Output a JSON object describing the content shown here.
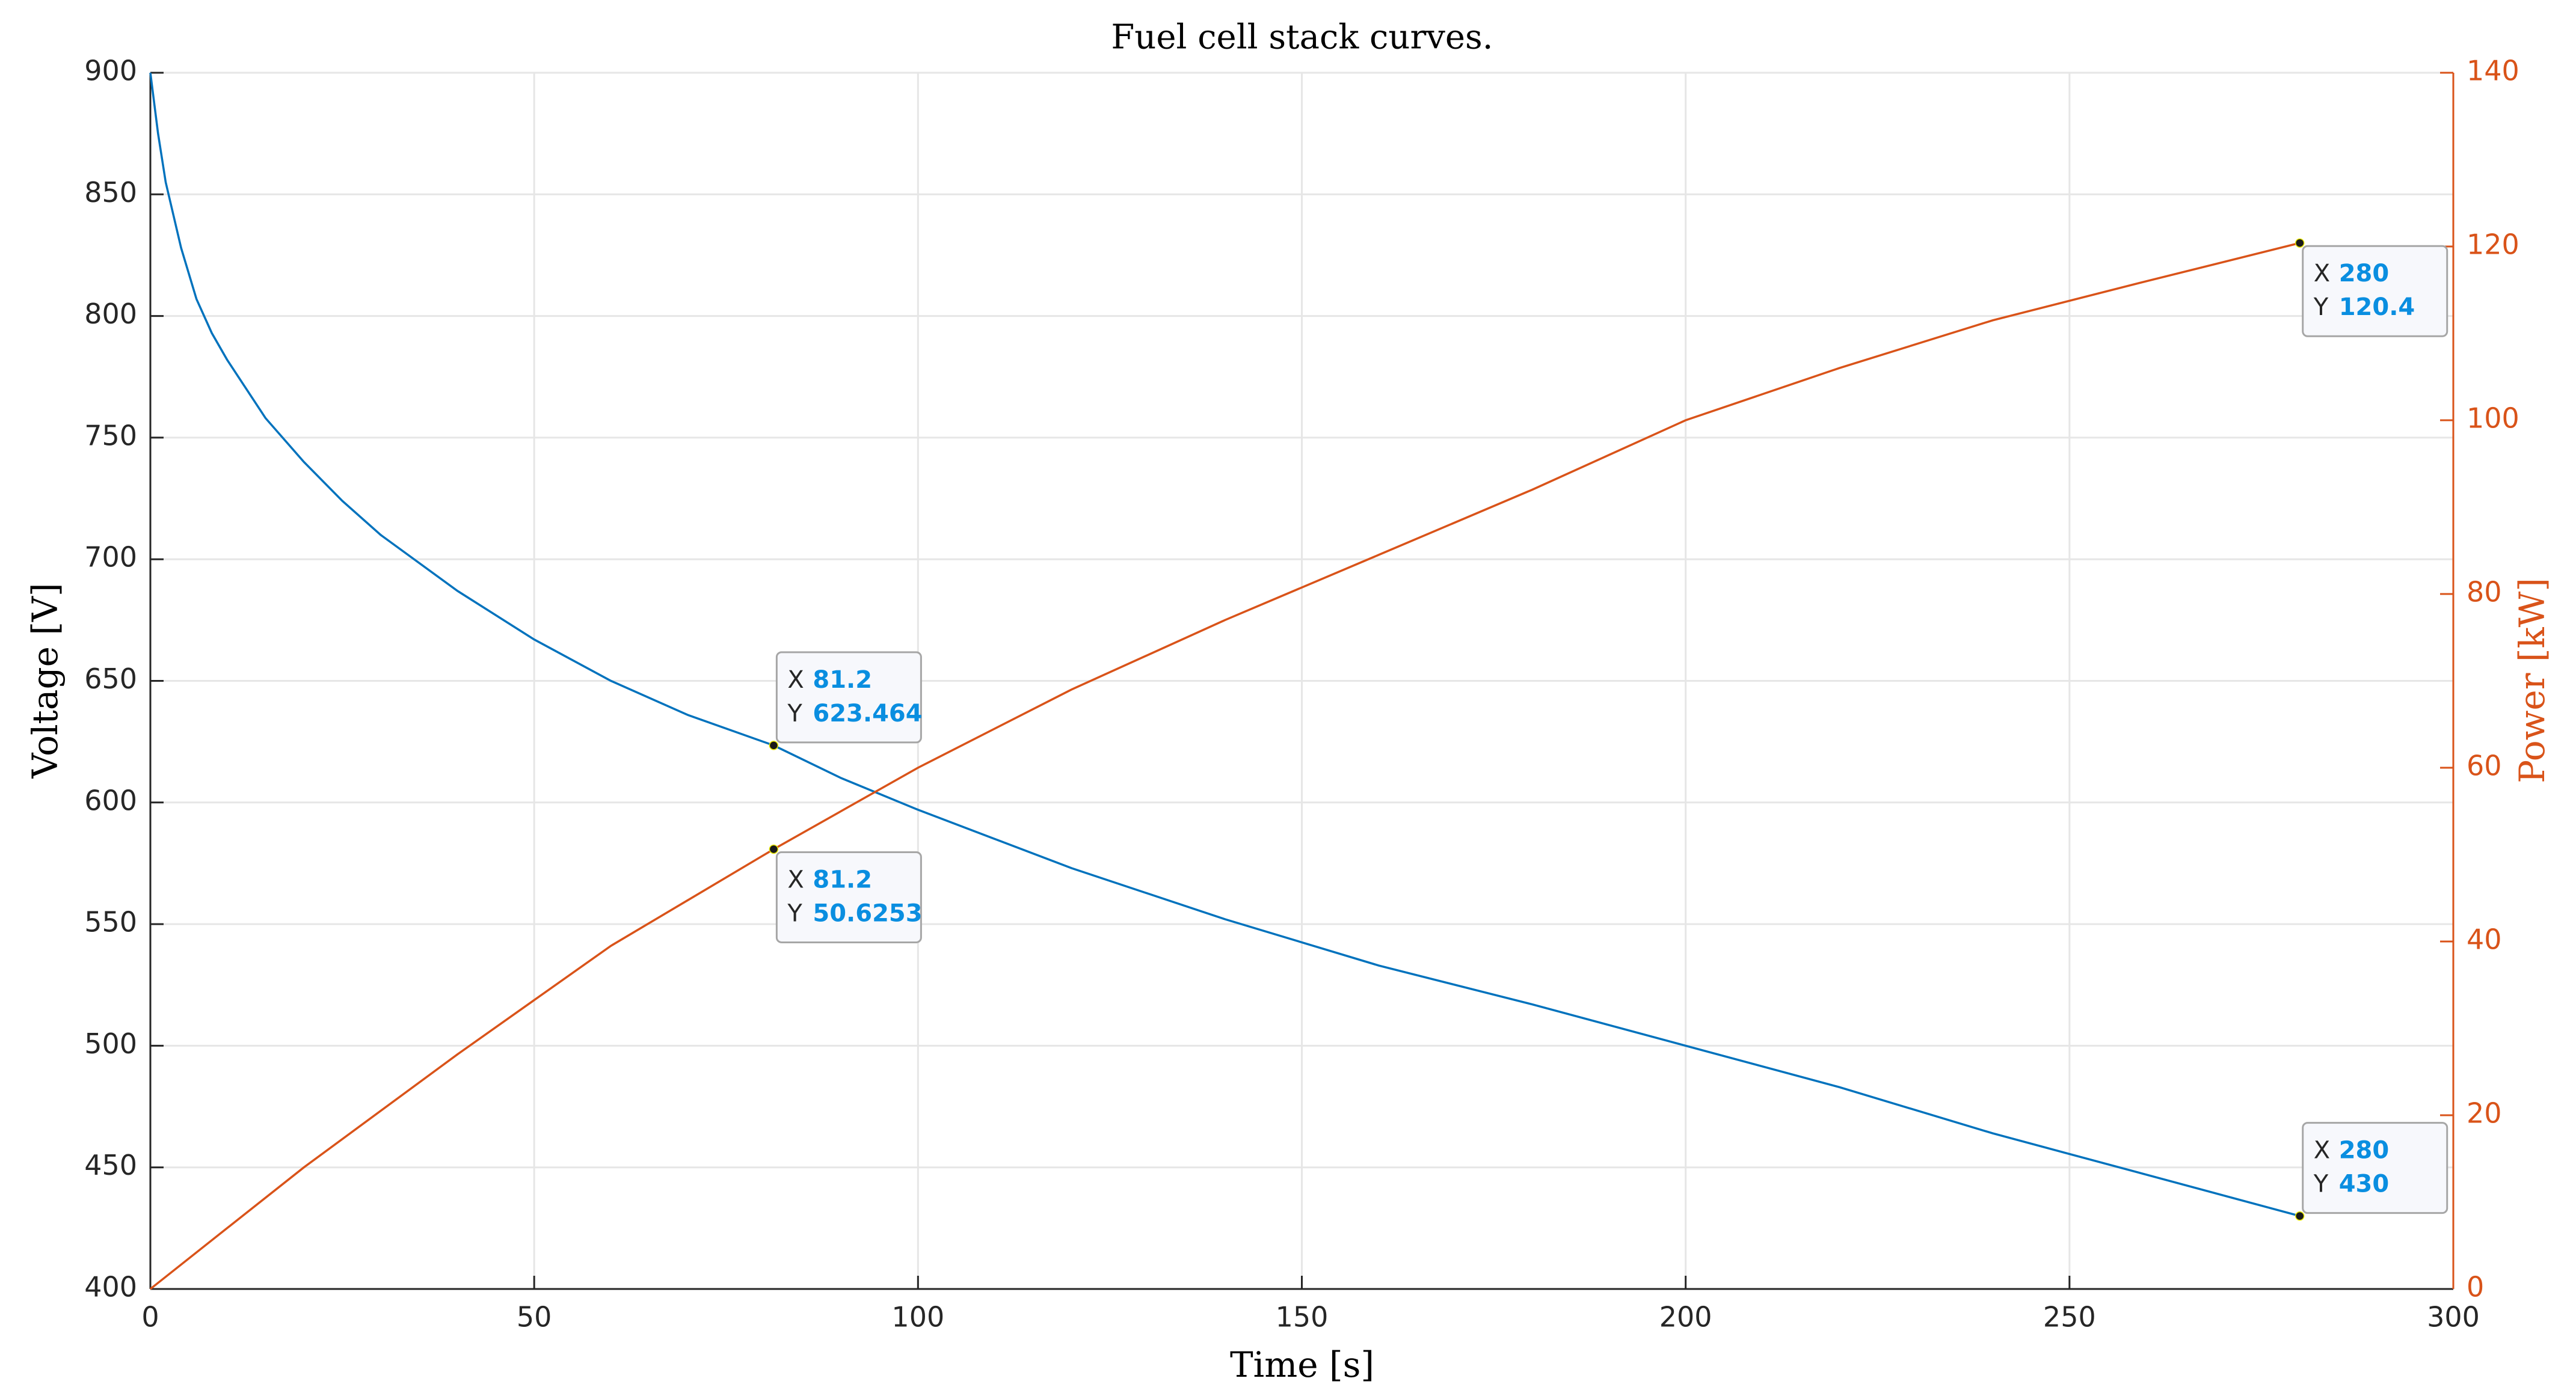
{
  "chart_data": {
    "type": "line",
    "title": "Fuel cell stack curves.",
    "xlabel": "Time [s]",
    "ylabel": "Voltage [V]",
    "y2label": "Power [kW]",
    "xlim": [
      0,
      300
    ],
    "xticks": [
      0,
      50,
      100,
      150,
      200,
      250,
      300
    ],
    "ylim": [
      400,
      900
    ],
    "yticks": [
      400,
      450,
      500,
      550,
      600,
      650,
      700,
      750,
      800,
      850,
      900
    ],
    "y2lim": [
      0,
      140
    ],
    "y2ticks": [
      0,
      20,
      40,
      60,
      80,
      100,
      120,
      140
    ],
    "grid": true,
    "series": [
      {
        "name": "Voltage",
        "color": "#0072bd",
        "axis": "y",
        "x": [
          0,
          1,
          2,
          4,
          6,
          8,
          10,
          15,
          20,
          25,
          30,
          40,
          50,
          60,
          70,
          81.2,
          90,
          100,
          120,
          140,
          160,
          180,
          200,
          220,
          240,
          260,
          280
        ],
        "values": [
          900,
          875,
          855,
          828,
          807,
          793,
          782,
          758,
          740,
          724,
          710,
          687,
          667,
          650,
          636,
          623.464,
          610,
          597,
          573,
          552,
          533,
          517,
          500,
          483,
          464,
          447,
          430
        ]
      },
      {
        "name": "Power",
        "color": "#d95319",
        "axis": "y2",
        "x": [
          0,
          10,
          20,
          40,
          60,
          81.2,
          100,
          120,
          140,
          160,
          180,
          200,
          220,
          240,
          260,
          280
        ],
        "values": [
          0,
          7,
          14,
          27,
          39.5,
          50.6253,
          60,
          69,
          77,
          84.5,
          92,
          100,
          106,
          111.5,
          116,
          120.4
        ]
      }
    ],
    "annotations": [
      {
        "x_name": "X",
        "y_name": "Y",
        "x": 81.2,
        "y": 623.464,
        "axis": "y"
      },
      {
        "x_name": "X",
        "y_name": "Y",
        "x": 81.2,
        "y": 50.6253,
        "axis": "y2"
      },
      {
        "x_name": "X",
        "y_name": "Y",
        "x": 280,
        "y": 120.4,
        "axis": "y2"
      },
      {
        "x_name": "X",
        "y_name": "Y",
        "x": 280,
        "y": 430,
        "axis": "y"
      }
    ]
  }
}
